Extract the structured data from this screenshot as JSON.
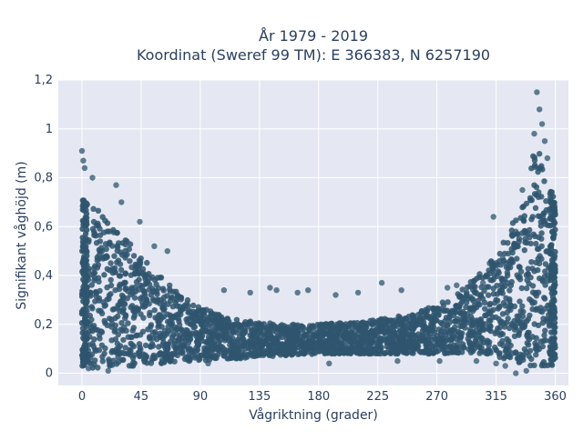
{
  "chart_data": {
    "type": "scatter",
    "title_line1": "År 1979 - 2019",
    "title_line2": "Koordinat (Sweref 99 TM): E 366383, N 6257190",
    "xlabel": "Vågriktning (grader)",
    "ylabel": "Signifikant våghöjd (m)",
    "xlim": [
      -18,
      370
    ],
    "ylim": [
      -0.05,
      1.2
    ],
    "xticks": [
      0,
      45,
      90,
      135,
      180,
      225,
      270,
      315,
      360
    ],
    "yticks": [
      0,
      0.2,
      0.4,
      0.6,
      0.8,
      1,
      1.2
    ],
    "ytick_labels": [
      "0",
      "0,2",
      "0,4",
      "0,6",
      "0,8",
      "1",
      "1,2"
    ],
    "grid": true,
    "background": "#e5e8f2",
    "marker_color": "#2f556e",
    "envelope": {
      "description": "dense band lower/upper bounds by direction",
      "x": [
        0,
        10,
        20,
        30,
        40,
        45,
        55,
        65,
        75,
        90,
        105,
        120,
        135,
        150,
        180,
        210,
        225,
        250,
        270,
        285,
        300,
        315,
        325,
        335,
        340,
        345,
        350,
        355,
        360
      ],
      "lower": [
        0.03,
        0.02,
        0.03,
        0.03,
        0.03,
        0.03,
        0.04,
        0.04,
        0.05,
        0.05,
        0.06,
        0.06,
        0.07,
        0.07,
        0.08,
        0.08,
        0.08,
        0.08,
        0.08,
        0.08,
        0.08,
        0.07,
        0.05,
        0.04,
        0.03,
        0.03,
        0.03,
        0.03,
        0.03
      ],
      "upper": [
        0.72,
        0.68,
        0.62,
        0.58,
        0.52,
        0.48,
        0.42,
        0.37,
        0.32,
        0.27,
        0.24,
        0.22,
        0.21,
        0.2,
        0.2,
        0.21,
        0.22,
        0.24,
        0.28,
        0.32,
        0.4,
        0.48,
        0.58,
        0.72,
        0.82,
        0.95,
        0.88,
        0.78,
        0.7
      ]
    },
    "outliers": [
      {
        "x": 0,
        "y": 0.91
      },
      {
        "x": 1,
        "y": 0.87
      },
      {
        "x": 2,
        "y": 0.84
      },
      {
        "x": 8,
        "y": 0.8
      },
      {
        "x": 26,
        "y": 0.77
      },
      {
        "x": 30,
        "y": 0.7
      },
      {
        "x": 44,
        "y": 0.62
      },
      {
        "x": 55,
        "y": 0.52
      },
      {
        "x": 65,
        "y": 0.5
      },
      {
        "x": 108,
        "y": 0.34
      },
      {
        "x": 128,
        "y": 0.33
      },
      {
        "x": 143,
        "y": 0.35
      },
      {
        "x": 148,
        "y": 0.34
      },
      {
        "x": 164,
        "y": 0.33
      },
      {
        "x": 172,
        "y": 0.34
      },
      {
        "x": 193,
        "y": 0.32
      },
      {
        "x": 210,
        "y": 0.33
      },
      {
        "x": 228,
        "y": 0.37
      },
      {
        "x": 243,
        "y": 0.34
      },
      {
        "x": 278,
        "y": 0.35
      },
      {
        "x": 285,
        "y": 0.36
      },
      {
        "x": 305,
        "y": 0.37
      },
      {
        "x": 310,
        "y": 0.45
      },
      {
        "x": 313,
        "y": 0.64
      },
      {
        "x": 320,
        "y": 0.47
      },
      {
        "x": 330,
        "y": 0.58
      },
      {
        "x": 335,
        "y": 0.75
      },
      {
        "x": 344,
        "y": 0.98
      },
      {
        "x": 346,
        "y": 1.15
      },
      {
        "x": 348,
        "y": 1.08
      },
      {
        "x": 350,
        "y": 1.02
      },
      {
        "x": 352,
        "y": 0.95
      },
      {
        "x": 354,
        "y": 0.88
      },
      {
        "x": 330,
        "y": 0.0
      },
      {
        "x": 338,
        "y": 0.01
      },
      {
        "x": 322,
        "y": 0.03
      },
      {
        "x": 188,
        "y": 0.04
      },
      {
        "x": 240,
        "y": 0.05
      },
      {
        "x": 272,
        "y": 0.05
      },
      {
        "x": 20,
        "y": 0.01
      },
      {
        "x": 5,
        "y": 0.02
      },
      {
        "x": 96,
        "y": 0.04
      },
      {
        "x": 300,
        "y": 0.05
      },
      {
        "x": 315,
        "y": 0.04
      }
    ]
  }
}
